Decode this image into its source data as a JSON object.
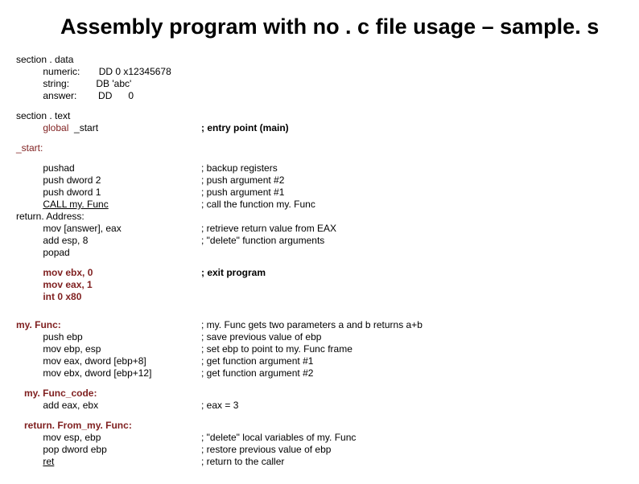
{
  "title": "Assembly program with no . c file usage – sample. s",
  "colors": {
    "title": "#000000",
    "text": "#000000",
    "keyword": "#7f1f1f",
    "maroon": "#7f1f1f",
    "background": "#ffffff"
  },
  "fonts": {
    "title_size": 27,
    "code_size": 12,
    "family": "Arial"
  },
  "data_section": {
    "header": "section . data",
    "lines": [
      {
        "label": "numeric:",
        "def": "DD 0 x12345678"
      },
      {
        "label": "string:",
        "def": "DB 'abc'"
      },
      {
        "label": "answer:",
        "def": "DD      0"
      }
    ]
  },
  "text_section": {
    "header": "section . text",
    "global_kw": "global",
    "global_sym": "_start",
    "global_comment": "; entry point (main)"
  },
  "start_label": "_start:",
  "start_block": [
    {
      "instr": "pushad",
      "comment": "; backup registers"
    },
    {
      "instr": "push dword 2",
      "comment": "; push argument #2"
    },
    {
      "instr": "push dword 1",
      "comment": "; push argument #1"
    },
    {
      "instr": "CALL my. Func",
      "comment": "; call the function my. Func",
      "underline": true
    }
  ],
  "return_addr_label": "return. Address:",
  "return_block": [
    {
      "instr": "mov [answer], eax",
      "comment": "; retrieve return value from EAX"
    },
    {
      "instr": "add esp, 8",
      "comment": "; \"delete\" function arguments"
    },
    {
      "instr": "popad",
      "comment": ""
    }
  ],
  "exit_block": [
    {
      "instr": "mov ebx, 0",
      "comment": "; exit program"
    },
    {
      "instr": "mov eax, 1",
      "comment": ""
    },
    {
      "instr": "int 0 x80",
      "comment": ""
    }
  ],
  "myfunc_label": "my. Func:",
  "myfunc_block": [
    {
      "instr": "",
      "comment": "; my. Func gets two parameters a and b returns a+b",
      "label_row": true
    },
    {
      "instr": "push ebp",
      "comment": "; save previous value of ebp"
    },
    {
      "instr": "mov ebp, esp",
      "comment": "; set ebp to point to my. Func frame"
    },
    {
      "instr": "mov eax, dword [ebp+8]",
      "comment": "; get function argument #1"
    },
    {
      "instr": "mov ebx, dword [ebp+12]",
      "comment": "; get function argument #2"
    }
  ],
  "myfunc_code_label": "my. Func_code:",
  "myfunc_code_block": [
    {
      "instr": "add eax, ebx",
      "comment": "; eax = 3"
    }
  ],
  "return_from_label": "return. From_my. Func:",
  "return_from_block": [
    {
      "instr": "mov esp, ebp",
      "comment": "; \"delete\" local variables of my. Func"
    },
    {
      "instr": "pop dword ebp",
      "comment": "; restore previous value of ebp"
    },
    {
      "instr": "ret",
      "comment": "; return to the caller",
      "underline": true
    }
  ]
}
